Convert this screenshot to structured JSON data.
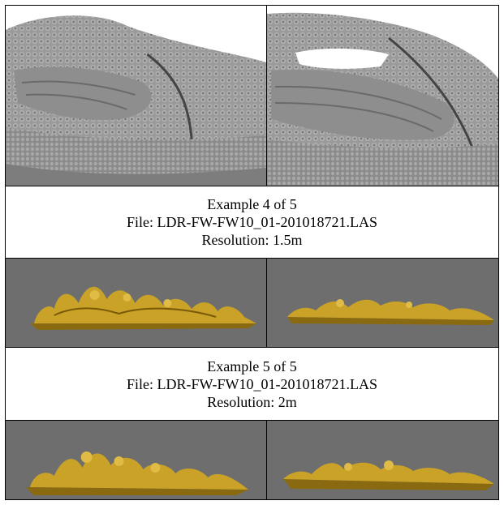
{
  "examples": [
    {
      "title": "Example 4 of 5",
      "file": "File: LDR-FW-FW10_01-201018721.LAS",
      "resolution": "Resolution: 1.5m"
    },
    {
      "title": "Example 5 of 5",
      "file": "File: LDR-FW-FW10_01-201018721.LAS",
      "resolution": "Resolution: 2m"
    }
  ],
  "colors": {
    "terrain_grey": "#8c8c8c",
    "model_gold": "#c9a227",
    "viewport_bg": "#6e6e6e"
  }
}
